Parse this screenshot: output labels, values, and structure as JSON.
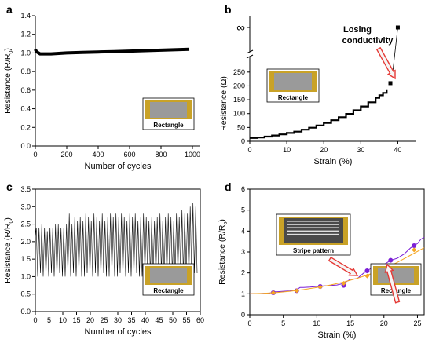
{
  "panels": {
    "a": {
      "letter": "a",
      "chart_data": {
        "type": "line",
        "xlabel": "Number of cycles",
        "ylabel": "Resistance (R/R",
        "ylabel_sub": "0",
        "ylabel_tail": ")",
        "xlim": [
          0,
          1050
        ],
        "ylim": [
          0.0,
          1.4
        ],
        "xticks": [
          0,
          200,
          400,
          600,
          800,
          1000
        ],
        "yticks": [
          0.0,
          0.2,
          0.4,
          0.6,
          0.8,
          1.0,
          1.2,
          1.4
        ],
        "ytick_labels": [
          "0.0",
          "0.2",
          "0.4",
          "0.6",
          "0.8",
          "1.0",
          "1.2",
          "1.4"
        ],
        "series": [
          {
            "x": [
              0,
              5,
              10,
              20,
              30,
              40,
              50,
              75,
              100,
              150,
              200,
              300,
              400,
              500,
              600,
              700,
              800,
              900,
              980
            ],
            "y": [
              1.04,
              1.02,
              1.01,
              1.0,
              0.99,
              0.99,
              0.99,
              0.99,
              0.99,
              0.995,
              1.0,
              1.005,
              1.01,
              1.015,
              1.02,
              1.025,
              1.03,
              1.035,
              1.04
            ]
          }
        ],
        "inset_label": "Rectangle"
      }
    },
    "b": {
      "letter": "b",
      "chart_data": {
        "type": "line",
        "xlabel": "Strain (%)",
        "ylabel": "Resistance (Ω)",
        "xlim": [
          0,
          45
        ],
        "ylim": [
          0,
          300
        ],
        "xticks": [
          0,
          10,
          20,
          30,
          40
        ],
        "yticks": [
          0,
          50,
          100,
          150,
          200,
          250
        ],
        "inf_label": "∞",
        "series": [
          {
            "x": [
              0,
              2,
              4,
              6,
              8,
              10,
              12,
              14,
              16,
              18,
              20,
              22,
              24,
              26,
              28,
              30,
              32,
              34,
              35,
              36,
              37
            ],
            "y": [
              12,
              14,
              17,
              21,
              25,
              30,
              35,
              42,
              49,
              57,
              66,
              76,
              87,
              99,
              112,
              126,
              141,
              157,
              166,
              175,
              185
            ]
          }
        ],
        "markers": [
          {
            "x": 38,
            "y": 210
          },
          {
            "x": 38.6,
            "y": 245
          }
        ],
        "infinity_point_x": 40,
        "annotation": "Losing\nconductivity",
        "inset_label": "Rectangle"
      }
    },
    "c": {
      "letter": "c",
      "chart_data": {
        "type": "line",
        "xlabel": "Number of cycles",
        "ylabel": "Resistance (R/R",
        "ylabel_sub": "0",
        "ylabel_tail": ")",
        "xlim": [
          0,
          60
        ],
        "ylim": [
          0.0,
          3.5
        ],
        "xticks": [
          0,
          5,
          10,
          15,
          20,
          25,
          30,
          35,
          40,
          45,
          50,
          55,
          60
        ],
        "yticks": [
          0.0,
          0.5,
          1.0,
          1.5,
          2.0,
          2.5,
          3.0,
          3.5
        ],
        "ytick_labels": [
          "0.0",
          "0.5",
          "1.0",
          "1.5",
          "2.0",
          "2.5",
          "3.0",
          "3.5"
        ],
        "series": [
          {
            "x_start": 0,
            "x_step": 1,
            "peaks": [
              2.4,
              2.4,
              2.5,
              2.4,
              2.3,
              2.4,
              2.4,
              2.5,
              2.5,
              2.4,
              2.4,
              2.5,
              2.8,
              2.5,
              2.7,
              2.6,
              2.7,
              2.6,
              2.8,
              2.7,
              2.6,
              2.8,
              2.7,
              2.6,
              2.8,
              2.6,
              2.7,
              2.8,
              2.7,
              2.8,
              2.7,
              2.8,
              2.7,
              2.6,
              2.8,
              2.7,
              2.8,
              2.6,
              2.7,
              2.8,
              2.7,
              2.6,
              2.7,
              2.6,
              2.7,
              2.8,
              2.6,
              2.7,
              2.8,
              2.7,
              2.6,
              2.8,
              2.7,
              2.9,
              2.8,
              2.8,
              3.0,
              3.1,
              3.0
            ],
            "valleys": [
              1.0,
              1.1,
              1.0,
              1.0,
              1.0,
              1.1,
              1.0,
              1.0,
              1.1,
              1.0,
              1.0,
              1.1,
              1.0,
              1.1,
              1.0,
              1.1,
              1.0,
              1.0,
              1.1,
              1.0,
              1.0,
              1.1,
              1.0,
              1.0,
              1.1,
              1.0,
              1.0,
              1.1,
              1.0,
              1.0,
              1.1,
              1.0,
              1.0,
              1.1,
              1.0,
              1.0,
              1.1,
              1.0,
              1.0,
              1.1,
              1.0,
              1.0,
              1.1,
              1.0,
              1.0,
              1.1,
              1.0,
              1.0,
              1.1,
              1.0,
              1.0,
              1.1,
              1.0,
              1.0,
              1.1,
              1.0,
              1.0,
              1.1,
              1.1
            ]
          }
        ],
        "inset_label": "Rectangle"
      }
    },
    "d": {
      "letter": "d",
      "chart_data": {
        "type": "line",
        "xlabel": "Strain (%)",
        "ylabel": "Resistance (R/R",
        "ylabel_sub": "o",
        "ylabel_tail": ")",
        "xlim": [
          0,
          26
        ],
        "ylim": [
          0,
          6
        ],
        "xticks": [
          0,
          5,
          10,
          15,
          20,
          25
        ],
        "yticks": [
          0,
          1,
          2,
          3,
          4,
          5,
          6
        ],
        "series": [
          {
            "color": "#7b1fd6",
            "marker": "circle",
            "x": [
              0,
              1,
              2,
              3,
              3.5,
              4,
              5,
              6,
              7,
              7.5,
              8,
              9,
              10,
              11,
              12,
              13,
              14,
              15,
              16,
              17,
              17.5,
              18,
              19,
              20,
              21,
              22,
              23,
              24,
              24.5,
              25,
              25.5,
              26
            ],
            "y": [
              1.0,
              1.0,
              1.02,
              1.03,
              1.1,
              1.1,
              1.12,
              1.14,
              1.2,
              1.3,
              1.3,
              1.32,
              1.35,
              1.38,
              1.4,
              1.42,
              1.5,
              1.7,
              1.72,
              2.0,
              2.1,
              2.2,
              2.25,
              2.4,
              2.6,
              2.7,
              2.9,
              3.2,
              3.3,
              3.4,
              3.6,
              3.7
            ],
            "markers": [
              [
                3.5,
                1.05
              ],
              [
                7,
                1.15
              ],
              [
                10.5,
                1.35
              ],
              [
                14,
                1.4
              ],
              [
                17.5,
                2.1
              ],
              [
                21,
                2.6
              ],
              [
                24.5,
                3.3
              ]
            ]
          },
          {
            "color": "#f5a623",
            "marker": "diamond",
            "x": [
              0,
              2,
              4,
              6,
              8,
              10,
              12,
              14,
              16,
              18,
              20,
              22,
              24,
              26
            ],
            "y": [
              1.0,
              1.02,
              1.06,
              1.12,
              1.2,
              1.3,
              1.42,
              1.56,
              1.74,
              1.95,
              2.2,
              2.5,
              2.85,
              3.2
            ],
            "markers": [
              [
                3.5,
                1.05
              ],
              [
                7,
                1.15
              ],
              [
                10.5,
                1.32
              ],
              [
                14,
                1.5
              ],
              [
                17.5,
                1.85
              ],
              [
                21,
                2.35
              ],
              [
                24.5,
                3.1
              ]
            ]
          }
        ],
        "inset1_label": "Stripe pattern",
        "inset2_label": "Rectangle"
      }
    }
  },
  "colors": {
    "axis": "#000000",
    "line": "#000000",
    "arrow_fill": "#f5f5f5",
    "arrow_stroke": "#e53935",
    "inset_border": "#c9a227",
    "inset_bg": "#9a9a9a"
  }
}
